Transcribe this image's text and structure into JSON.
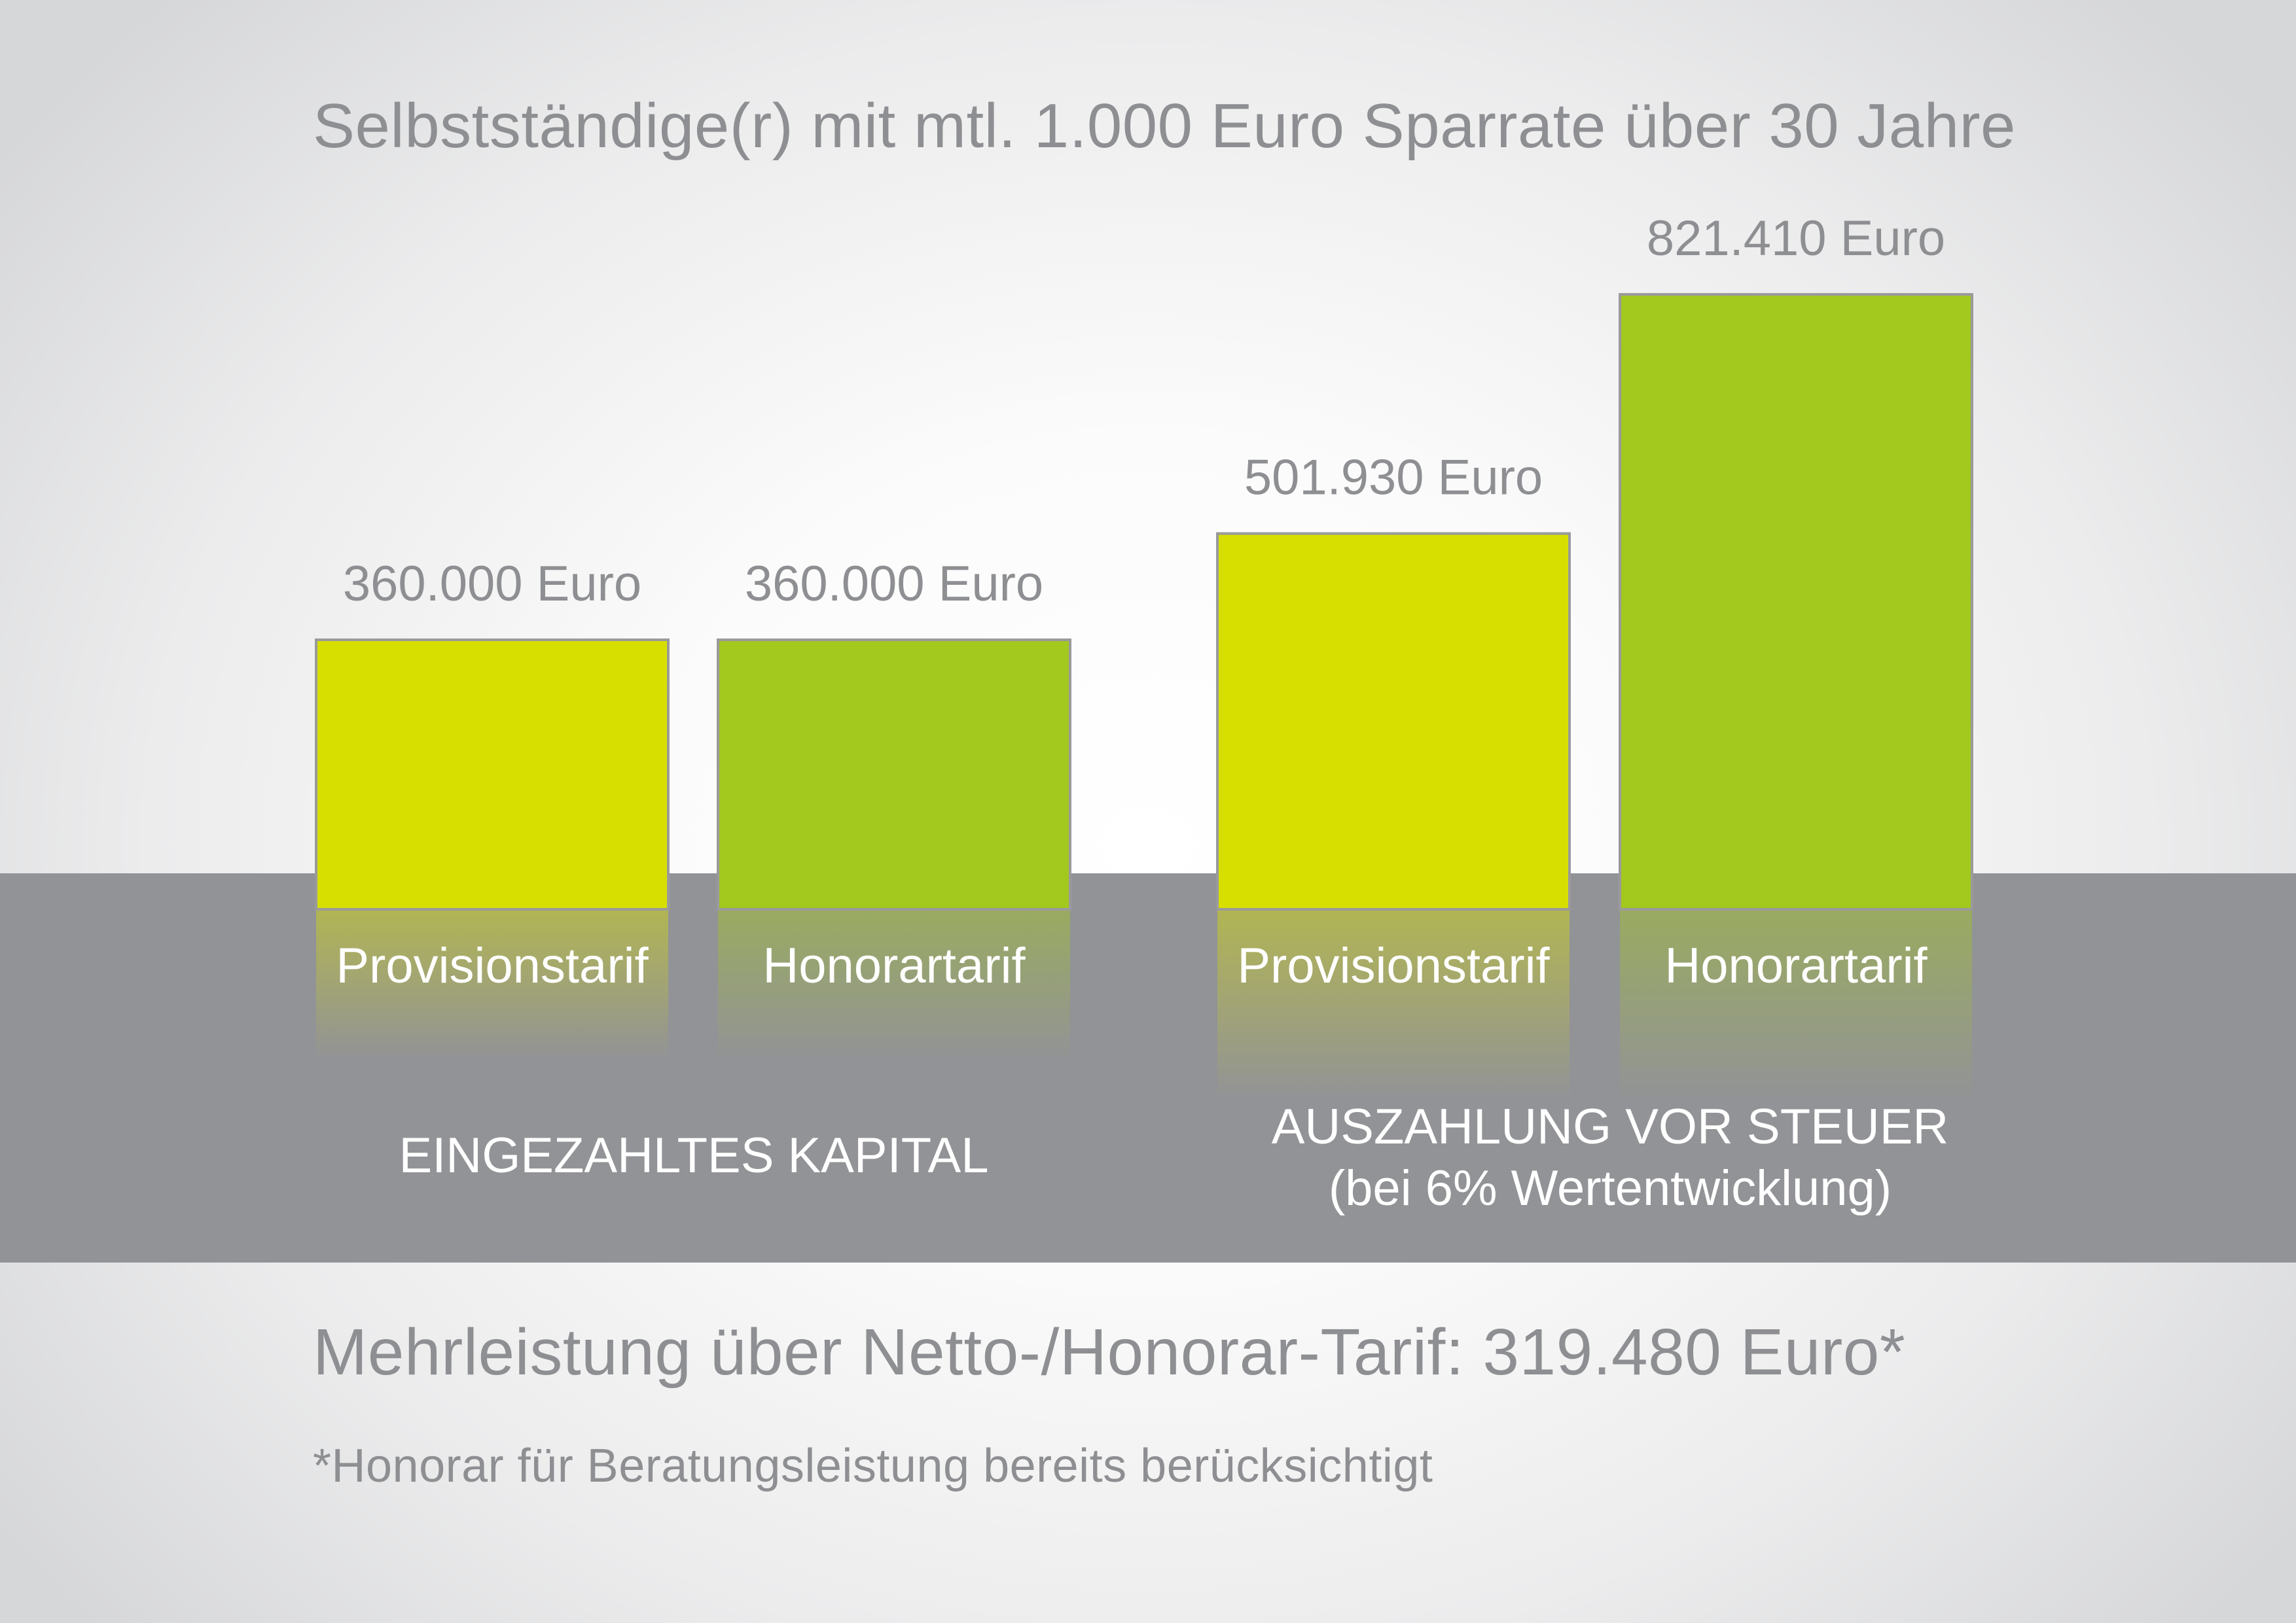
{
  "title": "Selbstständige(r) mit mtl. 1.000 Euro Sparrate über 30 Jahre",
  "summary": "Mehrleistung über Netto-/Honorar-Tarif: 319.480 Euro*",
  "footnote": "*Honorar für Beratungsleistung bereits berücksichtigt",
  "colors": {
    "provision": "#d7df00",
    "honorar": "#a3c81e",
    "band": "#929396",
    "bar_border": "#9a9a9c",
    "text_grey": "#8e8f92",
    "text_white": "#ffffff"
  },
  "chart_data": {
    "type": "bar",
    "title": "Selbstständige(r) mit mtl. 1.000 Euro Sparrate über 30 Jahre",
    "unit": "Euro",
    "groups": [
      {
        "label": "EINGEZAHLTES KAPITAL",
        "sublabel": "",
        "bars": [
          {
            "category": "Provisionstarif",
            "value": 360000,
            "value_label": "360.000 Euro",
            "color": "#d7df00"
          },
          {
            "category": "Honorartarif",
            "value": 360000,
            "value_label": "360.000 Euro",
            "color": "#a3c81e"
          }
        ]
      },
      {
        "label": "AUSZAHLUNG VOR STEUER",
        "sublabel": "(bei 6% Wertentwicklung)",
        "bars": [
          {
            "category": "Provisionstarif",
            "value": 501930,
            "value_label": "501.930 Euro",
            "color": "#d7df00"
          },
          {
            "category": "Honorartarif",
            "value": 821410,
            "value_label": "821.410 Euro",
            "color": "#a3c81e"
          }
        ]
      }
    ],
    "ylim": [
      0,
      821410
    ],
    "grid": false,
    "legend": "none"
  }
}
